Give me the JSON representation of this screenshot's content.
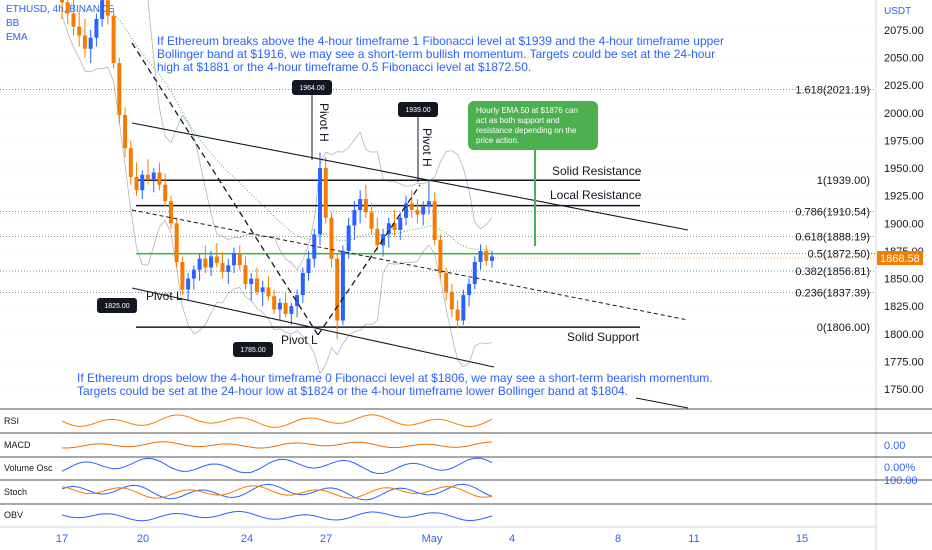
{
  "header": {
    "symbol": "ETHUSD, 4h, BINANCE",
    "bb": "BB",
    "ema": "EMA",
    "currency": "USDT"
  },
  "notes": {
    "top": [
      "If Ethereum breaks above the 4-hour timeframe 1 Fibonacci level at $1939 and the 4-hour timeframe upper",
      "Bollinger band at $1916, we may see a short-term bullish momentum. Targets could be set at the 24-hour",
      "high at $1881 or the 4-hour timeframe 0.5 Fibonacci level at $1872.50."
    ],
    "bottom": [
      "If Ethereum drops below the 4-hour timeframe 0 Fibonacci level at $1806, we may see a short-term bearish momentum.",
      "Targets could be set at the 24-hour low at $1824 or the 4-hour timeframe lower Bollinger band at $1804."
    ],
    "green_box": [
      "Hourly EMA 50 at $1876 can",
      "act as both support and",
      "resistance depending on the",
      "price action."
    ]
  },
  "annotations": {
    "solid_resistance": "Solid Resistance",
    "local_resistance": "Local Resistance",
    "solid_support": "Solid Support",
    "pivot_h1": "Pivot H",
    "pivot_h2": "Pivot H",
    "pivot_l1": "Pivot L",
    "pivot_l2": "Pivot L",
    "tag_1964": "1964.00",
    "tag_1939": "1939.00",
    "tag_1825": "1825.00",
    "tag_1785": "1785.00"
  },
  "colors": {
    "up": "#2962ff",
    "down": "#f57c00",
    "ema_green": "#4caf50",
    "fib_green": "#4caf50",
    "note_blue": "#2962ff",
    "bg": "#ffffff"
  },
  "chart_data": {
    "type": "candlestick",
    "ylim": [
      1725,
      2110
    ],
    "y_ticks": [
      2075,
      2050,
      2025,
      2000,
      1975,
      1950,
      1925,
      1900,
      1875,
      1850,
      1825,
      1800,
      1775,
      1750
    ],
    "y_tick_labels": [
      "2075.00",
      "2050.00",
      "2025.00",
      "2000.00",
      "1975.00",
      "1950.00",
      "1925.00",
      "1900.00",
      "1875.00",
      "1850.00",
      "1825.00",
      "1800.00",
      "1775.00",
      "1750.00"
    ],
    "x_ticks": [
      "17",
      "20",
      "24",
      "27",
      "May",
      "4",
      "8",
      "11",
      "15"
    ],
    "last_price": "1868.58",
    "fib_levels": [
      {
        "label": "1.618(2021.19)",
        "price": 2021.19
      },
      {
        "label": "1(1939.00)",
        "price": 1939.0
      },
      {
        "label": "0.786(1910.54)",
        "price": 1910.54
      },
      {
        "label": "0.618(1888.19)",
        "price": 1888.19
      },
      {
        "label": "0.5(1872.50)",
        "price": 1872.5
      },
      {
        "label": "0.382(1856.81)",
        "price": 1856.81
      },
      {
        "label": "0.236(1837.39)",
        "price": 1837.39
      },
      {
        "label": "0(1806.00)",
        "price": 1806.0
      }
    ],
    "candles": [
      [
        2105,
        2120,
        2085,
        2100
      ],
      [
        2100,
        2118,
        2080,
        2090
      ],
      [
        2090,
        2110,
        2070,
        2078
      ],
      [
        2078,
        2092,
        2060,
        2070
      ],
      [
        2070,
        2085,
        2050,
        2058
      ],
      [
        2058,
        2075,
        2045,
        2068
      ],
      [
        2068,
        2090,
        2060,
        2085
      ],
      [
        2085,
        2110,
        2078,
        2102
      ],
      [
        2102,
        2115,
        2080,
        2088
      ],
      [
        2088,
        2095,
        2040,
        2045
      ],
      [
        2045,
        2050,
        1990,
        1998
      ],
      [
        1998,
        2005,
        1960,
        1968
      ],
      [
        1968,
        1975,
        1935,
        1942
      ],
      [
        1942,
        1955,
        1925,
        1930
      ],
      [
        1930,
        1948,
        1922,
        1944
      ],
      [
        1944,
        1958,
        1935,
        1940
      ],
      [
        1940,
        1950,
        1928,
        1946
      ],
      [
        1946,
        1955,
        1930,
        1935
      ],
      [
        1935,
        1945,
        1915,
        1920
      ],
      [
        1920,
        1925,
        1895,
        1900
      ],
      [
        1900,
        1905,
        1860,
        1865
      ],
      [
        1865,
        1870,
        1835,
        1840
      ],
      [
        1840,
        1855,
        1830,
        1850
      ],
      [
        1850,
        1862,
        1840,
        1858
      ],
      [
        1858,
        1872,
        1848,
        1868
      ],
      [
        1868,
        1880,
        1855,
        1860
      ],
      [
        1860,
        1875,
        1852,
        1870
      ],
      [
        1870,
        1882,
        1860,
        1864
      ],
      [
        1864,
        1874,
        1850,
        1856
      ],
      [
        1856,
        1868,
        1845,
        1862
      ],
      [
        1862,
        1878,
        1855,
        1873
      ],
      [
        1873,
        1880,
        1858,
        1862
      ],
      [
        1862,
        1870,
        1840,
        1845
      ],
      [
        1845,
        1855,
        1830,
        1850
      ],
      [
        1850,
        1860,
        1835,
        1838
      ],
      [
        1838,
        1848,
        1825,
        1842
      ],
      [
        1842,
        1852,
        1830,
        1834
      ],
      [
        1834,
        1840,
        1818,
        1822
      ],
      [
        1822,
        1832,
        1812,
        1828
      ],
      [
        1828,
        1838,
        1815,
        1818
      ],
      [
        1818,
        1828,
        1808,
        1825
      ],
      [
        1825,
        1840,
        1815,
        1835
      ],
      [
        1835,
        1860,
        1828,
        1855
      ],
      [
        1855,
        1875,
        1848,
        1868
      ],
      [
        1868,
        1895,
        1860,
        1890
      ],
      [
        1890,
        1964,
        1880,
        1950
      ],
      [
        1950,
        1960,
        1900,
        1905
      ],
      [
        1905,
        1910,
        1860,
        1868
      ],
      [
        1868,
        1872,
        1795,
        1812
      ],
      [
        1812,
        1880,
        1808,
        1875
      ],
      [
        1875,
        1905,
        1868,
        1898
      ],
      [
        1898,
        1920,
        1885,
        1912
      ],
      [
        1912,
        1930,
        1900,
        1922
      ],
      [
        1922,
        1935,
        1905,
        1910
      ],
      [
        1910,
        1918,
        1890,
        1895
      ],
      [
        1895,
        1905,
        1875,
        1880
      ],
      [
        1880,
        1895,
        1870,
        1890
      ],
      [
        1890,
        1905,
        1878,
        1900
      ],
      [
        1900,
        1912,
        1888,
        1894
      ],
      [
        1894,
        1910,
        1885,
        1905
      ],
      [
        1905,
        1925,
        1898,
        1918
      ],
      [
        1918,
        1930,
        1905,
        1912
      ],
      [
        1912,
        1922,
        1900,
        1908
      ],
      [
        1908,
        1920,
        1898,
        1915
      ],
      [
        1915,
        1939,
        1908,
        1920
      ],
      [
        1920,
        1928,
        1880,
        1885
      ],
      [
        1885,
        1890,
        1850,
        1855
      ],
      [
        1855,
        1860,
        1830,
        1838
      ],
      [
        1838,
        1845,
        1815,
        1822
      ],
      [
        1822,
        1830,
        1805,
        1812
      ],
      [
        1812,
        1840,
        1808,
        1835
      ],
      [
        1835,
        1850,
        1825,
        1845
      ],
      [
        1845,
        1870,
        1840,
        1865
      ],
      [
        1865,
        1881,
        1858,
        1875
      ],
      [
        1875,
        1880,
        1862,
        1866
      ],
      [
        1866,
        1875,
        1860,
        1870
      ]
    ]
  }
}
